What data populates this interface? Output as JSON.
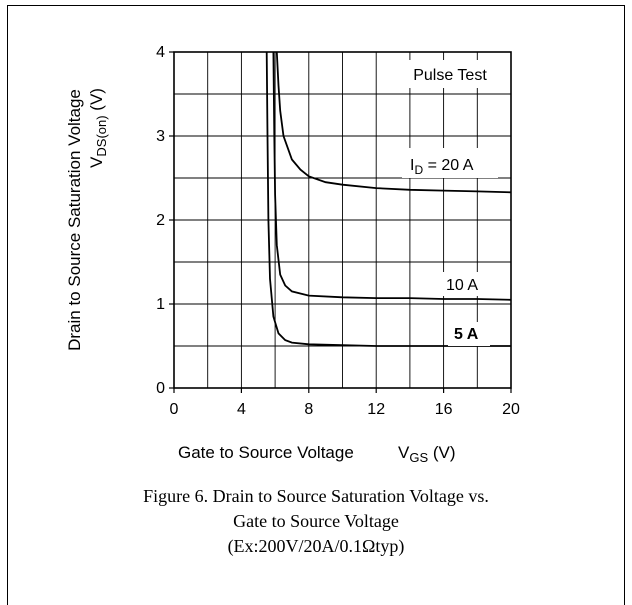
{
  "chart_data": {
    "type": "line",
    "title": "",
    "xlabel": "Gate to Source Voltage",
    "xsymbol_main": "V",
    "xsymbol_sub": "GS",
    "xunit": "(V)",
    "ylabel": "Drain to Source Saturation Voltage",
    "ysymbol_main": "V",
    "ysymbol_sub": "DS(on)",
    "yunit": "(V)",
    "xlim": [
      0,
      20
    ],
    "ylim": [
      0,
      4
    ],
    "xticks": [
      "0",
      "4",
      "8",
      "12",
      "16",
      "20"
    ],
    "yticks": [
      "0",
      "1",
      "2",
      "3",
      "4"
    ],
    "grid": true,
    "annotation": "Pulse Test",
    "series": [
      {
        "label_main": "I",
        "label_sub": "D",
        "label_rest": " = 20 A",
        "bold": false,
        "x": [
          6.1,
          6.2,
          6.3,
          6.5,
          7.0,
          7.5,
          8.0,
          9.0,
          10,
          12,
          14,
          16,
          18,
          20
        ],
        "y": [
          4.0,
          3.6,
          3.3,
          3.0,
          2.72,
          2.6,
          2.52,
          2.45,
          2.42,
          2.38,
          2.36,
          2.35,
          2.34,
          2.33
        ]
      },
      {
        "label_main": "10 A",
        "label_sub": "",
        "label_rest": "",
        "bold": false,
        "x": [
          5.9,
          5.95,
          6.0,
          6.1,
          6.3,
          6.6,
          7.0,
          8.0,
          10,
          12,
          14,
          16,
          18,
          20
        ],
        "y": [
          4.0,
          3.0,
          2.3,
          1.7,
          1.35,
          1.22,
          1.15,
          1.1,
          1.08,
          1.07,
          1.07,
          1.06,
          1.06,
          1.05
        ]
      },
      {
        "label_main": "5 A",
        "label_sub": "",
        "label_rest": "",
        "bold": true,
        "x": [
          5.5,
          5.55,
          5.6,
          5.7,
          5.9,
          6.2,
          6.6,
          7.0,
          8.0,
          10,
          12,
          14,
          16,
          18,
          20
        ],
        "y": [
          4.0,
          3.0,
          2.0,
          1.3,
          0.85,
          0.65,
          0.57,
          0.54,
          0.52,
          0.51,
          0.5,
          0.5,
          0.5,
          0.5,
          0.5
        ]
      }
    ]
  },
  "caption": {
    "line1": "Figure 6. Drain to Source Saturation Voltage vs.",
    "line2": "Gate to Source Voltage",
    "line3": "(Ex:200V/20A/0.1Ωtyp)"
  }
}
